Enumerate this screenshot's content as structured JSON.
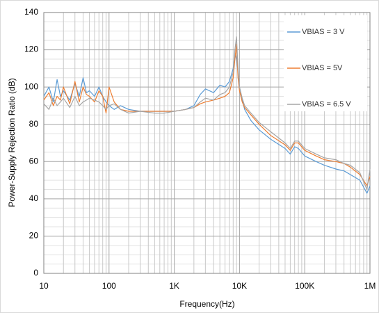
{
  "chart_data": {
    "type": "line",
    "xscale": "log",
    "grid": true,
    "xlabel": "Frequency(Hz)",
    "ylabel": "Power-Supply Rejection Ratio (dB)",
    "xlim": [
      10,
      1000000
    ],
    "ylim": [
      0,
      140
    ],
    "xticks": [
      10,
      100,
      {
        "value": 1000,
        "label": "1K"
      },
      {
        "value": 10000,
        "label": "10K"
      },
      {
        "value": 100000,
        "label": "100K"
      },
      {
        "value": 1000000,
        "label": "1M"
      }
    ],
    "yticks": [
      0,
      20,
      40,
      60,
      80,
      100,
      120,
      140
    ],
    "xminorticks": [
      20,
      30,
      40,
      50,
      60,
      70,
      80,
      90,
      200,
      300,
      400,
      500,
      600,
      700,
      800,
      900,
      2000,
      3000,
      4000,
      5000,
      6000,
      7000,
      8000,
      9000,
      20000,
      30000,
      40000,
      50000,
      60000,
      70000,
      80000,
      90000,
      200000,
      300000,
      400000,
      500000,
      600000,
      700000,
      800000,
      900000
    ],
    "yminorticks": [
      5,
      10,
      15,
      25,
      30,
      35,
      45,
      50,
      55,
      65,
      70,
      75,
      85,
      90,
      95,
      105,
      110,
      115,
      125,
      130,
      135
    ],
    "x": [
      10,
      12,
      14,
      16,
      18,
      20,
      25,
      30,
      35,
      40,
      45,
      50,
      60,
      70,
      80,
      90,
      100,
      120,
      150,
      200,
      300,
      500,
      700,
      1000,
      1500,
      2000,
      2500,
      3000,
      4000,
      5000,
      6000,
      7000,
      8000,
      8500,
      9000,
      9500,
      10000,
      11000,
      12000,
      15000,
      20000,
      30000,
      50000,
      60000,
      70000,
      80000,
      100000,
      150000,
      200000,
      300000,
      400000,
      500000,
      700000,
      900000,
      1000000
    ],
    "series": [
      {
        "name": "VBIAS = 3 V",
        "color": "#5b9bd5",
        "values": [
          95,
          100,
          92,
          104,
          95,
          98,
          93,
          102,
          95,
          105,
          97,
          98,
          95,
          100,
          95,
          92,
          90,
          88,
          90,
          88,
          87,
          87,
          87,
          87,
          88,
          90,
          96,
          99,
          97,
          101,
          100,
          103,
          110,
          118,
          115,
          108,
          100,
          93,
          88,
          82,
          77,
          72,
          67,
          64,
          68,
          67,
          63,
          60,
          58,
          56,
          55,
          53,
          50,
          43,
          47
        ]
      },
      {
        "name": "VBIAS = 5V",
        "color": "#ed7d31",
        "values": [
          93,
          97,
          90,
          95,
          93,
          100,
          91,
          103,
          92,
          100,
          96,
          95,
          92,
          98,
          95,
          86,
          100,
          92,
          88,
          87,
          87,
          87,
          87,
          87,
          88,
          89,
          91,
          92,
          93,
          94,
          95,
          97,
          105,
          115,
          123,
          105,
          98,
          92,
          89,
          85,
          80,
          74,
          69,
          66,
          70,
          70,
          66,
          63,
          61,
          60,
          59,
          57,
          53,
          47,
          52
        ]
      },
      {
        "name": "VBIAS = 6.5 V",
        "color": "#a5a5a5",
        "values": [
          91,
          88,
          94,
          90,
          92,
          94,
          89,
          95,
          90,
          92,
          93,
          94,
          93,
          92,
          90,
          88,
          90,
          91,
          88,
          86,
          87,
          86,
          86,
          87,
          88,
          89,
          92,
          94,
          93,
          96,
          97,
          100,
          108,
          120,
          127,
          110,
          100,
          94,
          90,
          86,
          81,
          76,
          70,
          67,
          71,
          71,
          67,
          64,
          62,
          61,
          59,
          58,
          54,
          45,
          56
        ]
      }
    ]
  }
}
